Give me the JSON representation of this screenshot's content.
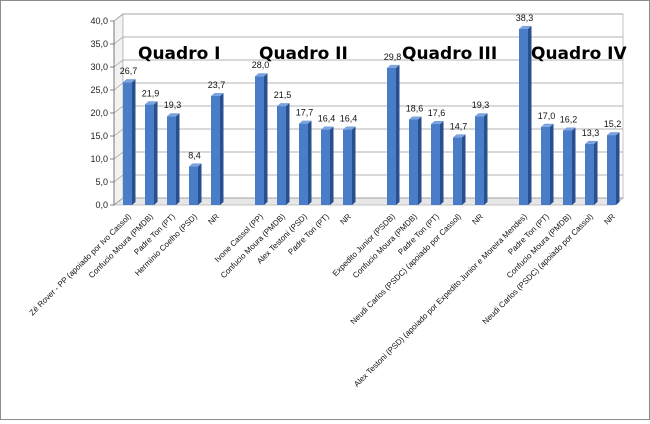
{
  "chart_data": {
    "type": "bar",
    "ylim": [
      0,
      40
    ],
    "yticks": [
      "0,0",
      "5,0",
      "10,0",
      "15,0",
      "20,0",
      "25,0",
      "30,0",
      "35,0",
      "40,0"
    ],
    "grid": true,
    "bar_color": "#4a7dc8",
    "groups": [
      {
        "title": "Quadro I",
        "categories": [
          "Zé Rover - PP (apoiado por Ivo Cassol)",
          "Confucio Moura (PMDB)",
          "Padre Ton (PT)",
          "Hermínio Coelho (PSD)",
          "NR"
        ],
        "values": [
          26.7,
          21.9,
          19.3,
          8.4,
          23.7
        ],
        "labels": [
          "26,7",
          "21,9",
          "19,3",
          "8,4",
          "23,7"
        ]
      },
      {
        "title": "Quadro II",
        "categories": [
          "Ivone Cassol (PP)",
          "Confucio Moura (PMDB)",
          "Alex Testoni (PSD)",
          "Padre Ton (PT)",
          "NR"
        ],
        "values": [
          28.0,
          21.5,
          17.7,
          16.4,
          16.4
        ],
        "labels": [
          "28,0",
          "21,5",
          "17,7",
          "16,4",
          "16,4"
        ]
      },
      {
        "title": "Quadro III",
        "categories": [
          "Expedito Junior (PSDB)",
          "Confucio Moura (PMDB)",
          "Padre Ton (PT)",
          "Neudi Carlos (PSDC) (apoiado por Cassol)",
          "NR"
        ],
        "values": [
          29.8,
          18.6,
          17.6,
          14.7,
          19.3
        ],
        "labels": [
          "29,8",
          "18,6",
          "17,6",
          "14,7",
          "19,3"
        ]
      },
      {
        "title": "Quadro IV",
        "categories": [
          "Alex Testoni (PSD) (apoiado por Expedito Junior e Moreira Mendes)",
          "Padre Ton (PT)",
          "Confucio Moura (PMDB)",
          "Neudi Carlos (PSDC) (apoiado por Cassol)",
          "NR"
        ],
        "values": [
          38.3,
          17.0,
          16.2,
          13.3,
          15.2
        ],
        "labels": [
          "38,3",
          "17,0",
          "16,2",
          "13,3",
          "15,2"
        ]
      }
    ]
  }
}
